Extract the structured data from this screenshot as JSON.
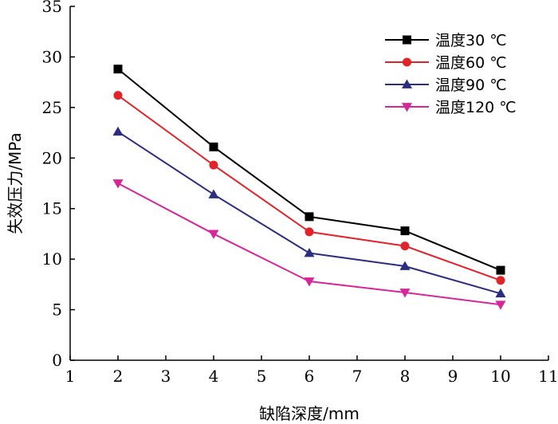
{
  "chart_data": {
    "type": "line",
    "title": "",
    "xlabel": "缺陷深度/mm",
    "ylabel": "失效压力/MPa",
    "xlim": [
      1,
      11
    ],
    "ylim": [
      0,
      35
    ],
    "xticks": [
      1,
      2,
      3,
      4,
      5,
      6,
      7,
      8,
      9,
      10,
      11
    ],
    "yticks": [
      0,
      5,
      10,
      15,
      20,
      25,
      30,
      35
    ],
    "grid": false,
    "legend_position": "top-right",
    "x": [
      2,
      4,
      6,
      8,
      10
    ],
    "series": [
      {
        "name": "温度30 ℃",
        "values": [
          28.8,
          21.1,
          14.2,
          12.8,
          8.9
        ],
        "color": "#000000",
        "marker": "square"
      },
      {
        "name": "温度60 ℃",
        "values": [
          26.2,
          19.3,
          12.7,
          11.3,
          7.9
        ],
        "color": "#e3232a",
        "marker": "circle"
      },
      {
        "name": "温度90 ℃",
        "values": [
          22.6,
          16.4,
          10.6,
          9.3,
          6.6
        ],
        "color": "#2b2d80",
        "marker": "triangle-up"
      },
      {
        "name": "温度120 ℃",
        "values": [
          17.5,
          12.5,
          7.8,
          6.7,
          5.5
        ],
        "color": "#d6269a",
        "marker": "triangle-down"
      }
    ]
  }
}
